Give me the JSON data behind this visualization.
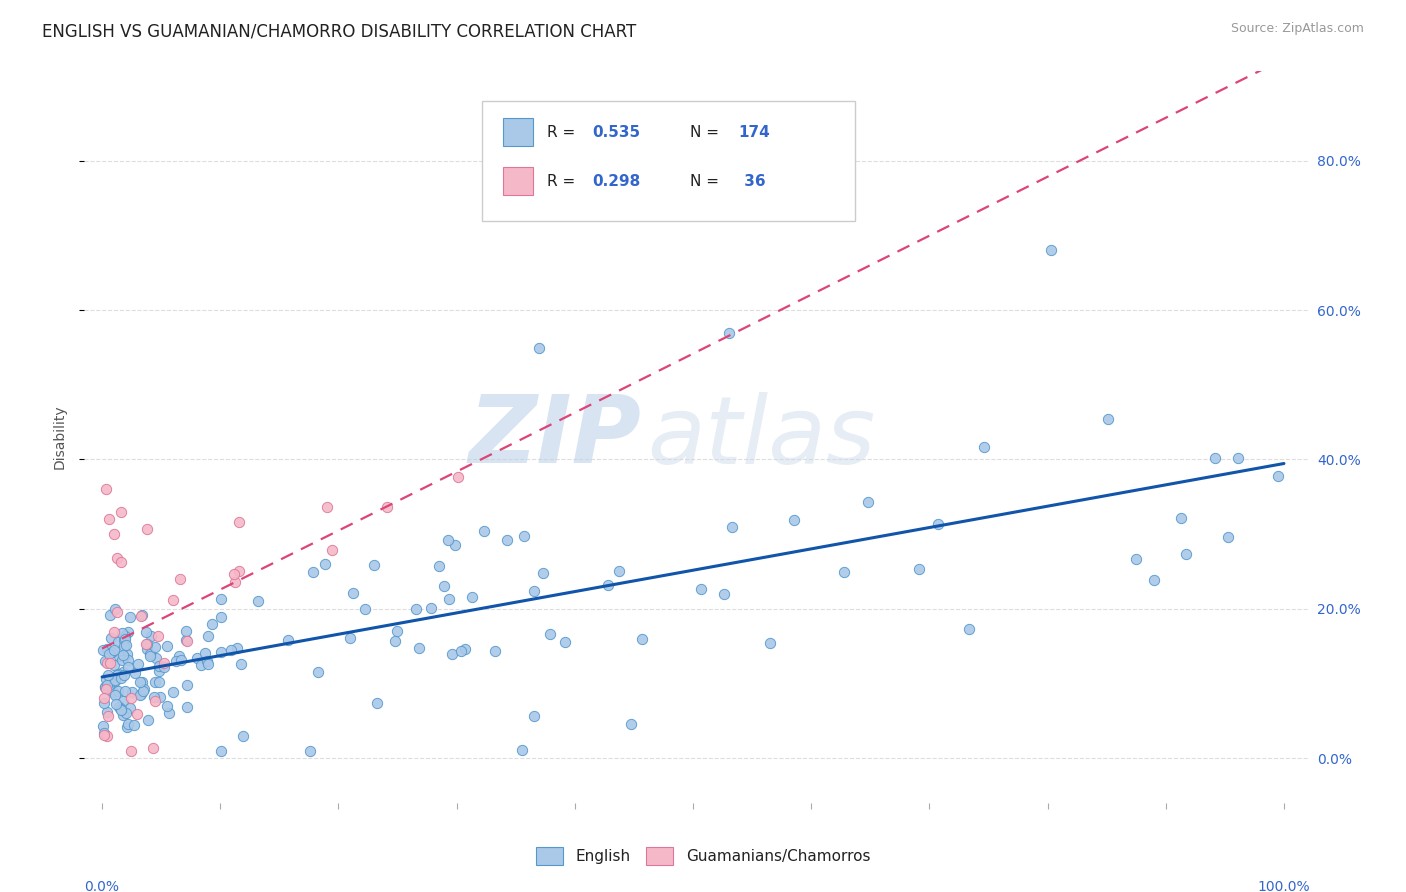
{
  "title": "ENGLISH VS GUAMANIAN/CHAMORRO DISABILITY CORRELATION CHART",
  "source": "Source: ZipAtlas.com",
  "ylabel": "Disability",
  "watermark_zip": "ZIP",
  "watermark_atlas": "atlas",
  "legend_labels": [
    "English",
    "Guamanians/Chamorros"
  ],
  "english_color": "#aac8e8",
  "english_edge_color": "#5599cc",
  "english_line_color": "#1155aa",
  "guam_color": "#f5b8c8",
  "guam_edge_color": "#dd7799",
  "guam_line_color": "#dd4477",
  "background_color": "#ffffff",
  "grid_color": "#dddddd",
  "axis_color": "#cccccc",
  "tick_color": "#aaaaaa",
  "title_color": "#222222",
  "source_color": "#999999",
  "ylabel_color": "#555555",
  "tick_label_color": "#555555",
  "pct_label_color": "#3366cc",
  "legend_text_color": "#222222",
  "legend_val_color": "#3366cc",
  "title_fontsize": 12,
  "source_fontsize": 9,
  "axis_fontsize": 10,
  "legend_fontsize": 11,
  "watermark_fontsize_zip": 68,
  "watermark_fontsize_atlas": 68,
  "y_ticks": [
    0.0,
    0.2,
    0.4,
    0.6,
    0.8
  ],
  "y_tick_labels": [
    "0.0%",
    "20.0%",
    "40.0%",
    "60.0%",
    "80.0%"
  ],
  "x_left_label": "0.0%",
  "x_right_label": "100.0%",
  "xlim": [
    -0.015,
    1.02
  ],
  "ylim": [
    -0.06,
    0.92
  ]
}
